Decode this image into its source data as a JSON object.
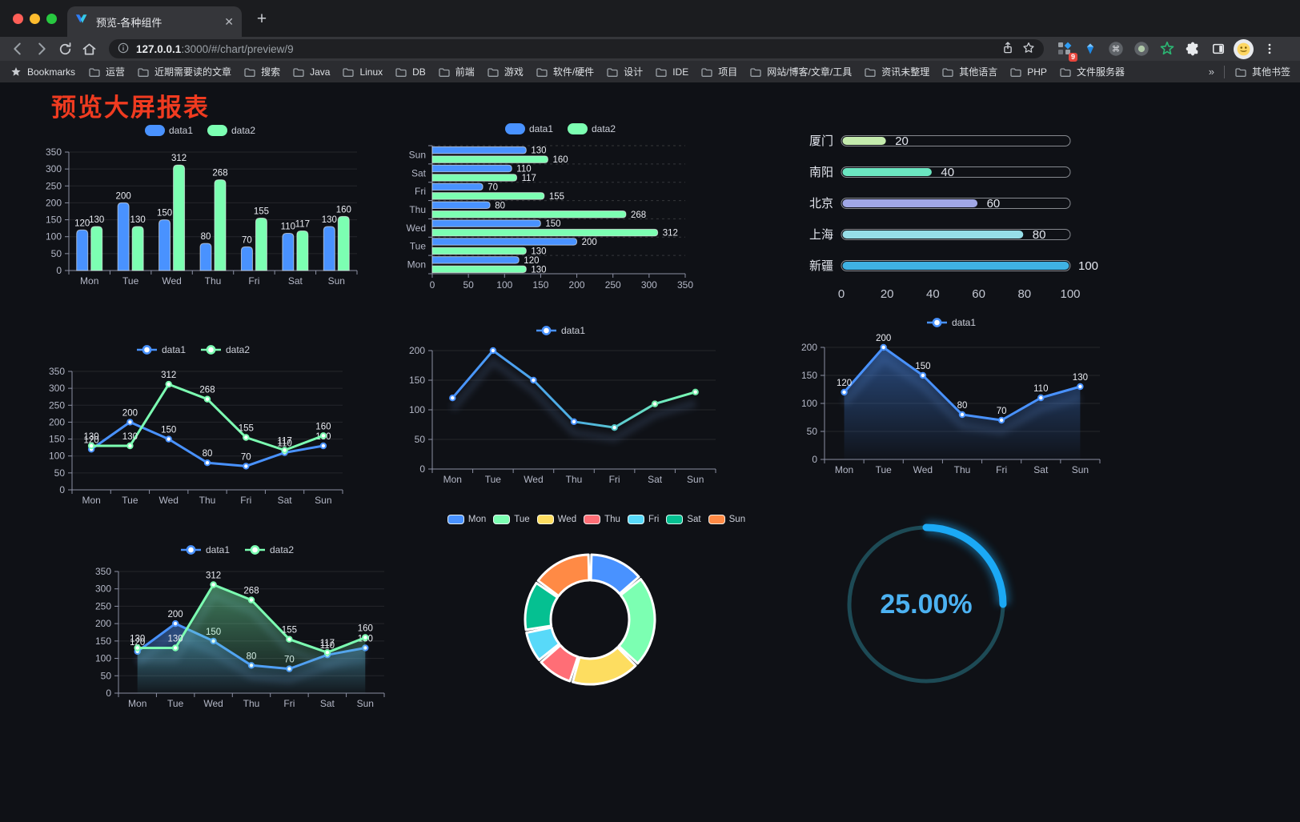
{
  "browser": {
    "window_controls": {
      "close": "close",
      "minimize": "minimize",
      "zoom": "zoom"
    },
    "tab": {
      "title": "预览-各种组件",
      "close_label": "✕",
      "new_tab_label": "+"
    },
    "address_bar": {
      "host": "127.0.0.1",
      "rest": ":3000/#/chart/preview/9"
    },
    "extensions_badge": "9",
    "bookmarks": {
      "star_label": "Bookmarks",
      "folders": [
        "运营",
        "近期需要读的文章",
        "搜索",
        "Java",
        "Linux",
        "DB",
        "前端",
        "游戏",
        "软件/硬件",
        "设计",
        "IDE",
        "项目",
        "网站/博客/文章/工具",
        "资讯未整理",
        "其他语言",
        "PHP",
        "文件服务器"
      ],
      "overflow_chevron": "»",
      "other_bookmarks": "其他书签"
    }
  },
  "page": {
    "title": "预览大屏报表"
  },
  "colors": {
    "accent_blue": "#4992ff",
    "accent_green": "#7cffb2",
    "title_red": "#f03b20",
    "gauge_blue": "#1ba9f5"
  },
  "chart_data": [
    {
      "id": "grouped-bar",
      "type": "bar",
      "categories": [
        "Mon",
        "Tue",
        "Wed",
        "Thu",
        "Fri",
        "Sat",
        "Sun"
      ],
      "series": [
        {
          "name": "data1",
          "color": "#4992ff",
          "values": [
            120,
            200,
            150,
            80,
            70,
            110,
            130
          ]
        },
        {
          "name": "data2",
          "color": "#7cffb2",
          "values": [
            130,
            130,
            312,
            268,
            155,
            117,
            160
          ]
        }
      ],
      "ylim": [
        0,
        350
      ],
      "yticks": [
        0,
        50,
        100,
        150,
        200,
        250,
        300,
        350
      ],
      "labels": true,
      "legend_position": "top"
    },
    {
      "id": "grouped-hbar",
      "type": "bar-horizontal",
      "categories": [
        "Sun",
        "Sat",
        "Fri",
        "Thu",
        "Wed",
        "Tue",
        "Mon"
      ],
      "series": [
        {
          "name": "data1",
          "color": "#4992ff",
          "values": [
            130,
            110,
            70,
            80,
            150,
            200,
            120
          ]
        },
        {
          "name": "data2",
          "color": "#7cffb2",
          "values": [
            160,
            117,
            155,
            268,
            312,
            130,
            130
          ]
        }
      ],
      "xlim": [
        0,
        350
      ],
      "xticks": [
        0,
        50,
        100,
        150,
        200,
        250,
        300,
        350
      ],
      "labels": true,
      "legend_position": "top"
    },
    {
      "id": "city-progress",
      "type": "progress-bar",
      "categories": [
        "厦门",
        "南阳",
        "北京",
        "上海",
        "新疆"
      ],
      "values": [
        20,
        40,
        60,
        80,
        100
      ],
      "colors": [
        "#c4ebad",
        "#6be6c1",
        "#a0a7e6",
        "#96dee8",
        "#3fb1e3"
      ],
      "xlim": [
        0,
        100
      ],
      "xticks": [
        0,
        20,
        40,
        60,
        80,
        100
      ]
    },
    {
      "id": "multi-line",
      "type": "line",
      "categories": [
        "Mon",
        "Tue",
        "Wed",
        "Thu",
        "Fri",
        "Sat",
        "Sun"
      ],
      "series": [
        {
          "name": "data1",
          "color": "#4992ff",
          "values": [
            120,
            200,
            150,
            80,
            70,
            110,
            130
          ]
        },
        {
          "name": "data2",
          "color": "#7cffb2",
          "values": [
            130,
            130,
            312,
            268,
            155,
            117,
            160
          ]
        }
      ],
      "ylim": [
        0,
        350
      ],
      "yticks": [
        0,
        50,
        100,
        150,
        200,
        250,
        300,
        350
      ],
      "labels": true,
      "legend_position": "top"
    },
    {
      "id": "gradient-line",
      "type": "line",
      "shadow": true,
      "categories": [
        "Mon",
        "Tue",
        "Wed",
        "Thu",
        "Fri",
        "Sat",
        "Sun"
      ],
      "series": [
        {
          "name": "data1",
          "color": "#4992ff",
          "gradient": [
            "#4992ff",
            "#7cffb2"
          ],
          "values": [
            120,
            200,
            150,
            80,
            70,
            110,
            130
          ]
        }
      ],
      "ylim": [
        0,
        200
      ],
      "yticks": [
        0,
        50,
        100,
        150,
        200
      ],
      "labels": false,
      "legend_position": "top"
    },
    {
      "id": "area-line",
      "type": "area",
      "shadow": true,
      "categories": [
        "Mon",
        "Tue",
        "Wed",
        "Thu",
        "Fri",
        "Sat",
        "Sun"
      ],
      "series": [
        {
          "name": "data1",
          "color": "#4992ff",
          "values": [
            120,
            200,
            150,
            80,
            70,
            110,
            130
          ]
        }
      ],
      "ylim": [
        0,
        200
      ],
      "yticks": [
        0,
        50,
        100,
        150,
        200
      ],
      "labels": true,
      "legend_position": "top"
    },
    {
      "id": "multi-area",
      "type": "area",
      "shadow": true,
      "categories": [
        "Mon",
        "Tue",
        "Wed",
        "Thu",
        "Fri",
        "Sat",
        "Sun"
      ],
      "series": [
        {
          "name": "data1",
          "color": "#4992ff",
          "values": [
            120,
            200,
            150,
            80,
            70,
            110,
            130
          ]
        },
        {
          "name": "data2",
          "color": "#7cffb2",
          "values": [
            130,
            130,
            312,
            268,
            155,
            117,
            160
          ]
        }
      ],
      "ylim": [
        0,
        350
      ],
      "yticks": [
        0,
        50,
        100,
        150,
        200,
        250,
        300,
        350
      ],
      "labels": true,
      "legend_position": "top"
    },
    {
      "id": "donut-pie",
      "type": "pie",
      "labels": [
        "Mon",
        "Tue",
        "Wed",
        "Thu",
        "Fri",
        "Sat",
        "Sun"
      ],
      "values": [
        120,
        200,
        150,
        80,
        70,
        110,
        130
      ],
      "colors": [
        "#4992ff",
        "#7cffb2",
        "#fddd60",
        "#ff6e76",
        "#58d9f9",
        "#05c091",
        "#ff8a45"
      ],
      "legend_position": "top"
    },
    {
      "id": "gauge",
      "type": "gauge",
      "value_percent": 25,
      "label": "25.00%",
      "color": "#1ba9f5"
    }
  ]
}
